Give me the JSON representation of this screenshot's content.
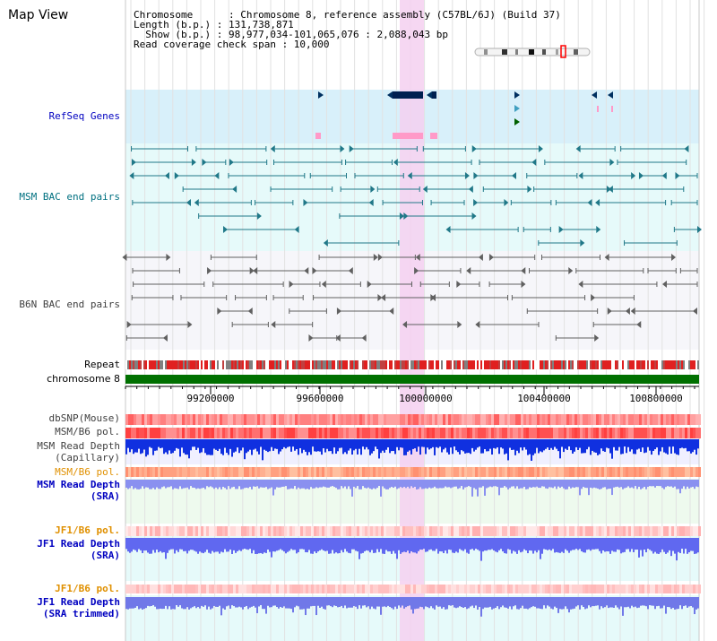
{
  "title": "Map View",
  "info": {
    "line1": "Chromosome      : Chromosome 8, reference assembly (C57BL/6J) (Build 37)",
    "line2": "Length (b.p.) : 131,738,871",
    "line3": "  Show (b.p.) : 98,977,034-101,065,076 : 2,088,043 bp",
    "line4": "Read coverage check span : 10,000"
  },
  "tracks": {
    "refseq": "RefSeq Genes",
    "msm_bac": "MSM BAC end pairs",
    "b6n_bac": "B6N BAC end pairs",
    "repeat": "Repeat",
    "chromosome": "chromosome 8",
    "dbsnp": "dbSNP(Mouse)",
    "msm_pol1": "MSM/B6 pol.",
    "msm_depth_cap_1": "MSM Read Depth",
    "msm_depth_cap_2": "(Capillary)",
    "msm_pol2": "MSM/B6 pol.",
    "msm_depth_sra_1": "MSM Read Depth",
    "msm_depth_sra_2": "(SRA)",
    "jf1_pol1": "JF1/B6 pol.",
    "jf1_depth_1": "JF1 Read Depth",
    "jf1_depth_2": "(SRA)",
    "jf1_pol2": "JF1/B6 pol.",
    "jf1_trim_1": "JF1 Read Depth",
    "jf1_trim_2": "(SRA trimmed)"
  },
  "axis": {
    "start_bp": 98977034,
    "end_bp": 101065076,
    "ticks": [
      "99200000",
      "99600000",
      "100000000",
      "100400000",
      "100800000"
    ]
  },
  "colors": {
    "refseq_bg": "#d8f0fa",
    "msm_bac_bg": "#e6fafa",
    "b6n_bg": "#f6f6fa",
    "highlight": "#f5d0f0",
    "chromosome": "#007000",
    "label_blue": "#0000c0",
    "label_teal": "#007080",
    "label_gray": "#404040",
    "label_orange": "#e09000",
    "label_navy": "#000080"
  }
}
